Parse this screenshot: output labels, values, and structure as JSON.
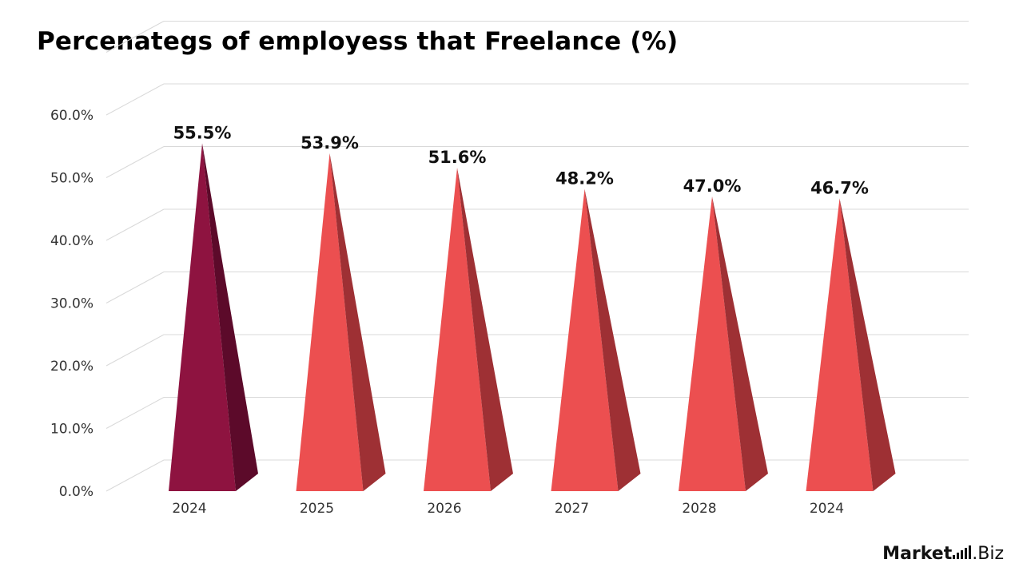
{
  "chart_data": {
    "type": "bar",
    "style": "3d-pyramid",
    "title": "Percenategs of employess that Freelance (%)",
    "categories": [
      "2024",
      "2025",
      "2026",
      "2027",
      "2028",
      "2024"
    ],
    "values": [
      55.5,
      53.9,
      51.6,
      48.2,
      47.0,
      46.7
    ],
    "value_labels": [
      "55.5%",
      "53.9%",
      "51.6%",
      "48.2%",
      "47.0%",
      "46.7%"
    ],
    "y_ticks": [
      "0.0%",
      "10.0%",
      "20.0%",
      "30.0%",
      "40.0%",
      "50.0%",
      "60.0%"
    ],
    "ylim": [
      0,
      60
    ],
    "grid": true,
    "colors": {
      "highlight_front": "#8e1340",
      "highlight_side": "#5c0a2a",
      "bar_front": "#ec4f50",
      "bar_side": "#9e3034",
      "grid": "#d9d9d9",
      "text": "#333333"
    }
  },
  "brand": {
    "name_bold": "Market",
    "name_rest": ".Biz"
  }
}
